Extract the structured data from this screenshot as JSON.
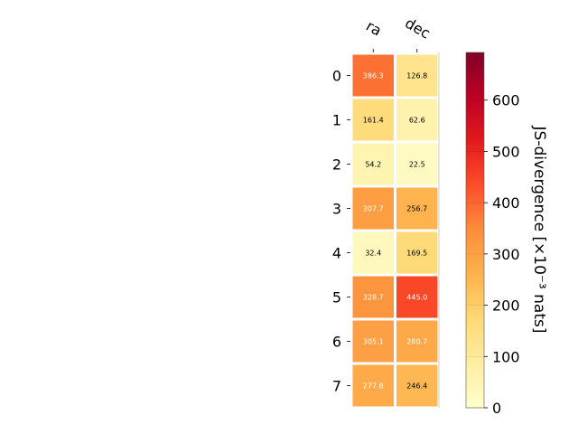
{
  "chart_data": {
    "type": "heatmap",
    "columns": [
      "ra",
      "dec"
    ],
    "rows": [
      "0",
      "1",
      "2",
      "3",
      "4",
      "5",
      "6",
      "7"
    ],
    "values": [
      [
        386.3,
        126.8
      ],
      [
        161.4,
        62.6
      ],
      [
        54.2,
        22.5
      ],
      [
        307.7,
        256.7
      ],
      [
        32.4,
        169.5
      ],
      [
        328.7,
        445.0
      ],
      [
        305.1,
        280.7
      ],
      [
        277.8,
        246.4
      ]
    ],
    "value_labels": [
      [
        "386.3",
        "126.8"
      ],
      [
        "161.4",
        "62.6"
      ],
      [
        "54.2",
        "22.5"
      ],
      [
        "307.7",
        "256.7"
      ],
      [
        "32.4",
        "169.5"
      ],
      [
        "328.7",
        "445.0"
      ],
      [
        "305.1",
        "280.7"
      ],
      [
        "277.8",
        "246.4"
      ]
    ],
    "colorbar": {
      "label": "JS-divergence [×10⁻³ nats]",
      "range": [
        0,
        693
      ],
      "ticks": [
        0,
        100,
        200,
        300,
        400,
        500,
        600
      ],
      "colormap": "YlOrRd"
    }
  }
}
